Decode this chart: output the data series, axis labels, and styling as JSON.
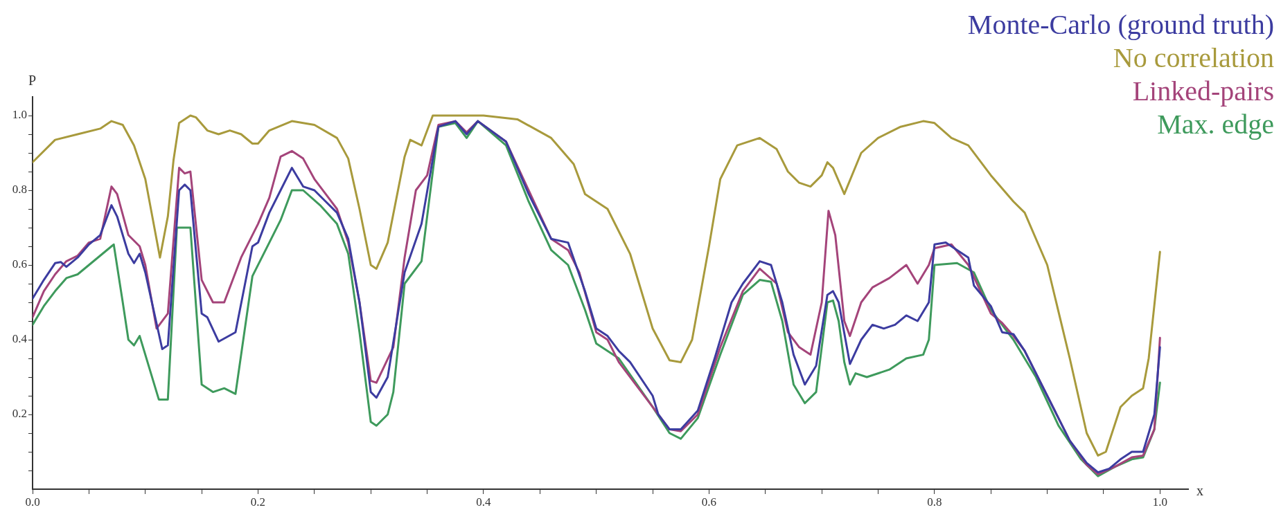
{
  "chart_data": {
    "type": "line",
    "xlabel": "x",
    "ylabel": "P",
    "legend": "top right",
    "grid": false,
    "marker": "none",
    "line_style": "solid",
    "xlim": [
      0,
      1.025
    ],
    "ylim": [
      0,
      1.05
    ],
    "xticks": [
      {
        "value": 0,
        "label": "0.0"
      },
      {
        "value": 0.05,
        "label": null
      },
      {
        "value": 0.1,
        "label": null
      },
      {
        "value": 0.15,
        "label": null
      },
      {
        "value": 0.2,
        "label": "0.2"
      },
      {
        "value": 0.25,
        "label": null
      },
      {
        "value": 0.3,
        "label": null
      },
      {
        "value": 0.35,
        "label": null
      },
      {
        "value": 0.4,
        "label": "0.4"
      },
      {
        "value": 0.45,
        "label": null
      },
      {
        "value": 0.5,
        "label": null
      },
      {
        "value": 0.55,
        "label": null
      },
      {
        "value": 0.6,
        "label": "0.6"
      },
      {
        "value": 0.65,
        "label": null
      },
      {
        "value": 0.7,
        "label": null
      },
      {
        "value": 0.75,
        "label": null
      },
      {
        "value": 0.8,
        "label": "0.8"
      },
      {
        "value": 0.85,
        "label": null
      },
      {
        "value": 0.9,
        "label": null
      },
      {
        "value": 0.95,
        "label": null
      },
      {
        "value": 1,
        "label": "1.0"
      }
    ],
    "yticks": [
      {
        "value": 0.05,
        "label": null
      },
      {
        "value": 0.1,
        "label": null
      },
      {
        "value": 0.15,
        "label": null
      },
      {
        "value": 0.2,
        "label": "0.2"
      },
      {
        "value": 0.25,
        "label": null
      },
      {
        "value": 0.3,
        "label": null
      },
      {
        "value": 0.35,
        "label": null
      },
      {
        "value": 0.4,
        "label": "0.4"
      },
      {
        "value": 0.45,
        "label": null
      },
      {
        "value": 0.5,
        "label": null
      },
      {
        "value": 0.55,
        "label": null
      },
      {
        "value": 0.6,
        "label": "0.6"
      },
      {
        "value": 0.65,
        "label": null
      },
      {
        "value": 0.7,
        "label": null
      },
      {
        "value": 0.75,
        "label": null
      },
      {
        "value": 0.8,
        "label": "0.8"
      },
      {
        "value": 0.85,
        "label": null
      },
      {
        "value": 0.9,
        "label": null
      },
      {
        "value": 0.95,
        "label": null
      },
      {
        "value": 1,
        "label": "1.0"
      }
    ],
    "series": [
      {
        "name": "Monte-Carlo (ground truth)",
        "color": "#3c3ca0",
        "x": [
          0,
          0.01,
          0.02,
          0.025,
          0.03,
          0.04,
          0.05,
          0.06,
          0.07,
          0.075,
          0.085,
          0.09,
          0.095,
          0.1,
          0.115,
          0.12,
          0.13,
          0.135,
          0.14,
          0.15,
          0.155,
          0.165,
          0.18,
          0.195,
          0.2,
          0.21,
          0.22,
          0.23,
          0.24,
          0.25,
          0.26,
          0.27,
          0.28,
          0.29,
          0.3,
          0.305,
          0.315,
          0.33,
          0.345,
          0.36,
          0.375,
          0.385,
          0.395,
          0.42,
          0.44,
          0.46,
          0.475,
          0.49,
          0.5,
          0.51,
          0.52,
          0.53,
          0.55,
          0.555,
          0.565,
          0.575,
          0.59,
          0.605,
          0.62,
          0.63,
          0.645,
          0.655,
          0.665,
          0.675,
          0.685,
          0.695,
          0.705,
          0.71,
          0.715,
          0.725,
          0.735,
          0.745,
          0.755,
          0.765,
          0.775,
          0.785,
          0.795,
          0.8,
          0.81,
          0.82,
          0.83,
          0.835,
          0.85,
          0.86,
          0.87,
          0.88,
          0.9,
          0.92,
          0.935,
          0.945,
          0.955,
          0.965,
          0.975,
          0.985,
          0.995,
          1
        ],
        "values": [
          0.51,
          0.56,
          0.605,
          0.608,
          0.595,
          0.62,
          0.655,
          0.68,
          0.76,
          0.73,
          0.63,
          0.605,
          0.63,
          0.58,
          0.375,
          0.385,
          0.8,
          0.815,
          0.8,
          0.47,
          0.46,
          0.395,
          0.42,
          0.65,
          0.66,
          0.74,
          0.8,
          0.86,
          0.81,
          0.8,
          0.77,
          0.74,
          0.67,
          0.5,
          0.26,
          0.245,
          0.3,
          0.58,
          0.71,
          0.97,
          0.985,
          0.95,
          0.985,
          0.93,
          0.79,
          0.67,
          0.66,
          0.53,
          0.43,
          0.41,
          0.37,
          0.34,
          0.25,
          0.2,
          0.16,
          0.16,
          0.21,
          0.35,
          0.5,
          0.55,
          0.61,
          0.6,
          0.5,
          0.36,
          0.28,
          0.33,
          0.52,
          0.53,
          0.5,
          0.335,
          0.4,
          0.44,
          0.43,
          0.44,
          0.465,
          0.45,
          0.5,
          0.655,
          0.66,
          0.64,
          0.62,
          0.545,
          0.49,
          0.42,
          0.415,
          0.37,
          0.25,
          0.13,
          0.07,
          0.045,
          0.055,
          0.08,
          0.1,
          0.1,
          0.2,
          0.38
        ]
      },
      {
        "name": "No correlation",
        "color": "#a89a3c",
        "x": [
          0,
          0.02,
          0.04,
          0.06,
          0.07,
          0.08,
          0.09,
          0.1,
          0.113,
          0.12,
          0.125,
          0.13,
          0.14,
          0.145,
          0.155,
          0.165,
          0.175,
          0.185,
          0.195,
          0.2,
          0.21,
          0.23,
          0.25,
          0.27,
          0.28,
          0.29,
          0.3,
          0.305,
          0.315,
          0.33,
          0.335,
          0.345,
          0.355,
          0.4,
          0.43,
          0.46,
          0.48,
          0.49,
          0.5,
          0.51,
          0.53,
          0.55,
          0.565,
          0.575,
          0.585,
          0.6,
          0.61,
          0.625,
          0.645,
          0.66,
          0.67,
          0.68,
          0.69,
          0.7,
          0.705,
          0.71,
          0.72,
          0.735,
          0.75,
          0.77,
          0.79,
          0.8,
          0.815,
          0.83,
          0.85,
          0.87,
          0.88,
          0.9,
          0.92,
          0.935,
          0.945,
          0.952,
          0.965,
          0.975,
          0.985,
          0.99,
          1
        ],
        "values": [
          0.875,
          0.935,
          0.95,
          0.965,
          0.985,
          0.975,
          0.92,
          0.83,
          0.62,
          0.73,
          0.88,
          0.98,
          1,
          0.995,
          0.96,
          0.95,
          0.96,
          0.95,
          0.925,
          0.925,
          0.96,
          0.985,
          0.975,
          0.94,
          0.885,
          0.75,
          0.6,
          0.59,
          0.66,
          0.89,
          0.935,
          0.92,
          1,
          1,
          0.99,
          0.94,
          0.87,
          0.79,
          0.77,
          0.75,
          0.63,
          0.43,
          0.345,
          0.34,
          0.4,
          0.65,
          0.83,
          0.92,
          0.94,
          0.91,
          0.85,
          0.82,
          0.81,
          0.84,
          0.875,
          0.86,
          0.79,
          0.9,
          0.94,
          0.97,
          0.985,
          0.98,
          0.94,
          0.92,
          0.84,
          0.77,
          0.74,
          0.6,
          0.35,
          0.15,
          0.09,
          0.1,
          0.22,
          0.25,
          0.27,
          0.35,
          0.635
        ]
      },
      {
        "name": "Linked-pairs",
        "color": "#a4447a",
        "x": [
          0,
          0.01,
          0.02,
          0.03,
          0.04,
          0.05,
          0.06,
          0.07,
          0.075,
          0.085,
          0.095,
          0.1,
          0.11,
          0.12,
          0.13,
          0.135,
          0.14,
          0.15,
          0.16,
          0.17,
          0.185,
          0.2,
          0.21,
          0.22,
          0.23,
          0.24,
          0.25,
          0.26,
          0.27,
          0.28,
          0.29,
          0.3,
          0.305,
          0.32,
          0.33,
          0.34,
          0.35,
          0.36,
          0.375,
          0.385,
          0.395,
          0.42,
          0.44,
          0.46,
          0.475,
          0.485,
          0.5,
          0.51,
          0.52,
          0.55,
          0.565,
          0.575,
          0.59,
          0.61,
          0.63,
          0.645,
          0.66,
          0.67,
          0.68,
          0.69,
          0.7,
          0.706,
          0.712,
          0.72,
          0.725,
          0.735,
          0.745,
          0.76,
          0.775,
          0.785,
          0.795,
          0.8,
          0.815,
          0.83,
          0.85,
          0.86,
          0.87,
          0.88,
          0.9,
          0.92,
          0.935,
          0.945,
          0.96,
          0.975,
          0.985,
          0.995,
          1
        ],
        "values": [
          0.46,
          0.53,
          0.575,
          0.61,
          0.625,
          0.66,
          0.67,
          0.81,
          0.79,
          0.68,
          0.65,
          0.6,
          0.43,
          0.47,
          0.86,
          0.845,
          0.85,
          0.56,
          0.5,
          0.5,
          0.62,
          0.71,
          0.78,
          0.89,
          0.905,
          0.885,
          0.83,
          0.79,
          0.75,
          0.66,
          0.5,
          0.29,
          0.285,
          0.38,
          0.62,
          0.8,
          0.84,
          0.975,
          0.985,
          0.955,
          0.985,
          0.93,
          0.8,
          0.67,
          0.64,
          0.58,
          0.42,
          0.4,
          0.34,
          0.22,
          0.16,
          0.155,
          0.2,
          0.38,
          0.53,
          0.59,
          0.55,
          0.42,
          0.38,
          0.36,
          0.5,
          0.745,
          0.68,
          0.45,
          0.41,
          0.5,
          0.54,
          0.565,
          0.6,
          0.55,
          0.6,
          0.645,
          0.655,
          0.6,
          0.47,
          0.445,
          0.41,
          0.37,
          0.25,
          0.13,
          0.065,
          0.04,
          0.06,
          0.085,
          0.09,
          0.16,
          0.405
        ]
      },
      {
        "name": "Max. edge",
        "color": "#3e9a5c",
        "x": [
          0,
          0.01,
          0.02,
          0.03,
          0.04,
          0.05,
          0.06,
          0.07,
          0.072,
          0.08,
          0.085,
          0.09,
          0.095,
          0.105,
          0.112,
          0.12,
          0.128,
          0.14,
          0.15,
          0.16,
          0.17,
          0.18,
          0.195,
          0.21,
          0.22,
          0.23,
          0.24,
          0.255,
          0.27,
          0.28,
          0.29,
          0.3,
          0.305,
          0.315,
          0.32,
          0.33,
          0.345,
          0.36,
          0.375,
          0.385,
          0.395,
          0.42,
          0.44,
          0.46,
          0.475,
          0.49,
          0.5,
          0.52,
          0.55,
          0.565,
          0.575,
          0.59,
          0.61,
          0.63,
          0.645,
          0.655,
          0.665,
          0.675,
          0.685,
          0.695,
          0.705,
          0.71,
          0.715,
          0.72,
          0.725,
          0.73,
          0.74,
          0.76,
          0.775,
          0.79,
          0.795,
          0.8,
          0.82,
          0.835,
          0.85,
          0.87,
          0.89,
          0.91,
          0.93,
          0.945,
          0.96,
          0.975,
          0.985,
          0.995,
          1
        ],
        "values": [
          0.44,
          0.49,
          0.53,
          0.565,
          0.575,
          0.6,
          0.625,
          0.65,
          0.655,
          0.5,
          0.4,
          0.385,
          0.41,
          0.31,
          0.24,
          0.24,
          0.7,
          0.7,
          0.28,
          0.26,
          0.27,
          0.255,
          0.57,
          0.66,
          0.72,
          0.8,
          0.8,
          0.76,
          0.71,
          0.63,
          0.42,
          0.18,
          0.17,
          0.2,
          0.26,
          0.55,
          0.61,
          0.97,
          0.98,
          0.94,
          0.985,
          0.92,
          0.77,
          0.64,
          0.6,
          0.48,
          0.39,
          0.35,
          0.22,
          0.15,
          0.135,
          0.19,
          0.36,
          0.52,
          0.56,
          0.555,
          0.45,
          0.28,
          0.23,
          0.26,
          0.5,
          0.505,
          0.45,
          0.34,
          0.28,
          0.31,
          0.3,
          0.32,
          0.35,
          0.36,
          0.4,
          0.6,
          0.605,
          0.58,
          0.48,
          0.4,
          0.3,
          0.17,
          0.08,
          0.035,
          0.06,
          0.08,
          0.085,
          0.16,
          0.285
        ]
      }
    ]
  }
}
